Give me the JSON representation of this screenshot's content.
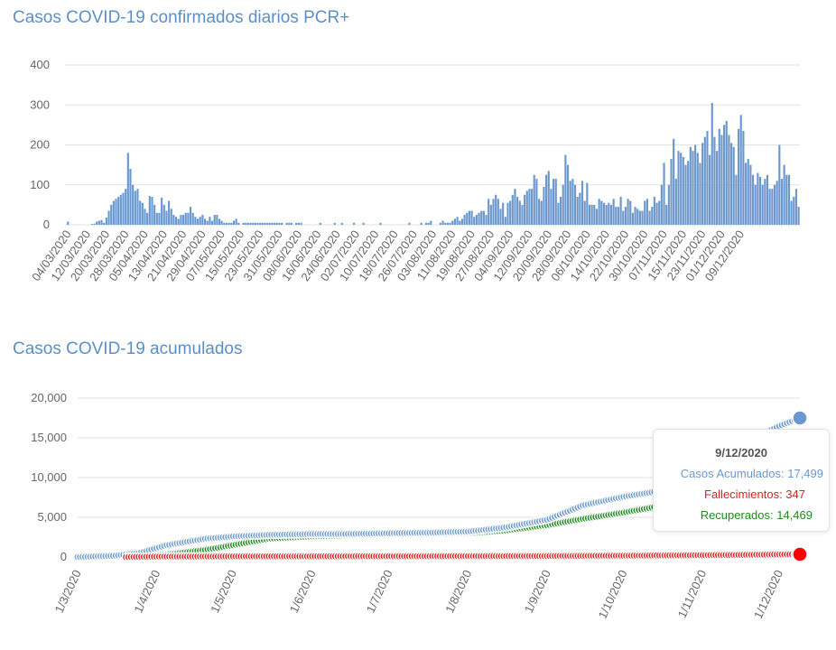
{
  "charts": {
    "daily": {
      "title": "Casos COVID-19 confirmados diarios PCR+"
    },
    "cumulative": {
      "title": "Casos COVID-19 acumulados"
    }
  },
  "tooltip": {
    "date": "9/12/2020",
    "cases": "Casos Acumulados: 17,499",
    "deaths": "Fallecimientos: 347",
    "recovered": "Recuperados: 14,469"
  },
  "colors": {
    "title": "#5b8fc7",
    "bars": "#6b99cf",
    "cases": "#6b99cf",
    "deaths": "#e02020",
    "recovered": "#1e8a1e",
    "grid": "#e2e2e2"
  },
  "chart_data": [
    {
      "type": "bar",
      "title": "Casos COVID-19 confirmados diarios PCR+",
      "x_start": "2020-03-04",
      "x_end": "2020-12-09",
      "ylim": [
        0,
        400
      ],
      "yticks": [
        0,
        100,
        200,
        300,
        400
      ],
      "xtick_labels": [
        "04/03/2020",
        "12/03/2020",
        "20/03/2020",
        "28/03/2020",
        "05/04/2020",
        "13/04/2020",
        "21/04/2020",
        "29/04/2020",
        "07/05/2020",
        "15/05/2020",
        "23/05/2020",
        "31/05/2020",
        "08/06/2020",
        "16/06/2020",
        "24/06/2020",
        "02/07/2020",
        "10/07/2020",
        "18/07/2020",
        "26/07/2020",
        "03/08/2020",
        "11/08/2020",
        "19/08/2020",
        "27/08/2020",
        "04/09/2020",
        "12/09/2020",
        "20/09/2020",
        "28/09/2020",
        "06/10/2020",
        "14/10/2020",
        "22/10/2020",
        "30/10/2020",
        "07/11/2020",
        "15/11/2020",
        "23/11/2020",
        "01/12/2020",
        "09/12/2020"
      ],
      "values": [
        8,
        0,
        0,
        0,
        0,
        0,
        0,
        0,
        0,
        0,
        2,
        3,
        8,
        10,
        12,
        5,
        18,
        35,
        50,
        60,
        65,
        70,
        75,
        80,
        90,
        180,
        140,
        100,
        85,
        90,
        60,
        55,
        40,
        30,
        72,
        70,
        50,
        30,
        30,
        68,
        50,
        35,
        60,
        40,
        25,
        20,
        15,
        25,
        25,
        30,
        30,
        45,
        30,
        20,
        15,
        20,
        25,
        15,
        10,
        20,
        10,
        25,
        25,
        15,
        10,
        5,
        5,
        5,
        5,
        10,
        15,
        5,
        0,
        5,
        5,
        5,
        5,
        5,
        5,
        5,
        5,
        5,
        5,
        5,
        5,
        5,
        5,
        5,
        5,
        5,
        0,
        5,
        5,
        5,
        0,
        5,
        5,
        5,
        0,
        0,
        0,
        0,
        0,
        0,
        0,
        5,
        0,
        0,
        0,
        0,
        0,
        5,
        0,
        0,
        5,
        0,
        0,
        0,
        0,
        5,
        0,
        0,
        0,
        5,
        0,
        0,
        0,
        0,
        0,
        0,
        5,
        0,
        0,
        0,
        0,
        0,
        0,
        0,
        0,
        0,
        0,
        0,
        5,
        0,
        0,
        0,
        0,
        5,
        0,
        5,
        5,
        10,
        0,
        0,
        0,
        5,
        10,
        5,
        5,
        5,
        10,
        15,
        20,
        10,
        15,
        25,
        30,
        35,
        35,
        20,
        25,
        30,
        35,
        35,
        25,
        65,
        50,
        65,
        75,
        65,
        40,
        55,
        20,
        55,
        60,
        75,
        90,
        70,
        60,
        50,
        75,
        85,
        90,
        90,
        125,
        115,
        65,
        60,
        95,
        125,
        135,
        90,
        115,
        115,
        55,
        70,
        100,
        175,
        150,
        110,
        115,
        100,
        70,
        80,
        110,
        60,
        105,
        50,
        50,
        50,
        40,
        65,
        60,
        55,
        50,
        55,
        50,
        65,
        45,
        45,
        70,
        35,
        45,
        65,
        60,
        30,
        45,
        40,
        35,
        35,
        60,
        65,
        35,
        45,
        70,
        55,
        60,
        100,
        155,
        50,
        100,
        165,
        215,
        115,
        185,
        180,
        170,
        150,
        160,
        195,
        185,
        200,
        180,
        155,
        205,
        220,
        235,
        175,
        305,
        220,
        185,
        240,
        225,
        250,
        260,
        225,
        205,
        195,
        125,
        240,
        275,
        235,
        155,
        165,
        150,
        125,
        100,
        130,
        120,
        100,
        115,
        125,
        90,
        90,
        100,
        110,
        200,
        115,
        150,
        125,
        125,
        60,
        70,
        90,
        45
      ]
    },
    {
      "type": "scatter",
      "title": "Casos COVID-19 acumulados",
      "x_start": "2020-03-01",
      "x_end": "2020-12-09",
      "ylim": [
        0,
        20000
      ],
      "yticks": [
        "0",
        "5,000",
        "10,000",
        "15,000",
        "20,000"
      ],
      "xtick_labels": [
        "1/3/2020",
        "1/4/2020",
        "1/5/2020",
        "1/6/2020",
        "1/7/2020",
        "1/8/2020",
        "1/9/2020",
        "1/10/2020",
        "1/11/2020",
        "1/12/2020"
      ],
      "series": [
        {
          "name": "Casos Acumulados",
          "color": "#6b99cf",
          "dates": [
            "2020-03-01",
            "2020-03-15",
            "2020-03-25",
            "2020-04-05",
            "2020-04-20",
            "2020-05-01",
            "2020-05-15",
            "2020-06-01",
            "2020-06-15",
            "2020-07-01",
            "2020-07-15",
            "2020-08-01",
            "2020-08-15",
            "2020-09-01",
            "2020-09-15",
            "2020-10-01",
            "2020-10-15",
            "2020-11-01",
            "2020-11-15",
            "2020-12-01",
            "2020-12-09"
          ],
          "values": [
            0,
            150,
            500,
            1500,
            2300,
            2600,
            2800,
            2900,
            2900,
            3000,
            3050,
            3200,
            3700,
            4700,
            6500,
            7600,
            8300,
            10800,
            14000,
            16500,
            17499
          ]
        },
        {
          "name": "Fallecimientos",
          "color": "#e02020",
          "dates": [
            "2020-03-20",
            "2020-04-01",
            "2020-05-01",
            "2020-06-01",
            "2020-07-01",
            "2020-08-01",
            "2020-09-01",
            "2020-10-01",
            "2020-11-01",
            "2020-12-01",
            "2020-12-09"
          ],
          "values": [
            0,
            50,
            80,
            90,
            100,
            110,
            130,
            170,
            230,
            320,
            347
          ]
        },
        {
          "name": "Recuperados",
          "color": "#1e8a1e",
          "dates": [
            "2020-03-20",
            "2020-04-05",
            "2020-04-20",
            "2020-05-01",
            "2020-05-15",
            "2020-06-01",
            "2020-07-01",
            "2020-08-01",
            "2020-08-15",
            "2020-09-01",
            "2020-09-15",
            "2020-10-01",
            "2020-10-15",
            "2020-11-01",
            "2020-11-15",
            "2020-12-01",
            "2020-12-09"
          ],
          "values": [
            0,
            300,
            900,
            1500,
            2300,
            2600,
            2850,
            3000,
            3300,
            4000,
            4800,
            5600,
            6400,
            8000,
            10500,
            13000,
            14469
          ]
        }
      ]
    }
  ]
}
